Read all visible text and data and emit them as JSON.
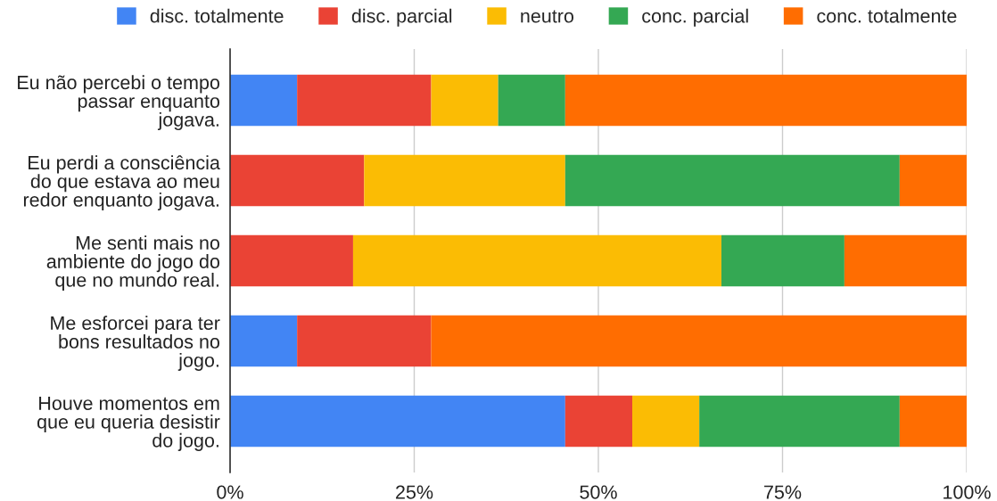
{
  "chart_data": {
    "type": "bar",
    "orientation": "horizontal",
    "stacked": true,
    "categories": [
      "Eu não percebi o tempo\npassar enquanto\njogava.",
      "Eu perdi a consciência\ndo que estava ao meu\nredor enquanto jogava.",
      "Me senti mais no\nambiente do jogo do\nque no mundo real.",
      "Me esforcei para ter\nbons resultados no\njogo.",
      "Houve momentos em\nque eu queria desistir\ndo jogo."
    ],
    "series": [
      {
        "name": "disc. totalmente",
        "color": "#4285f4",
        "values": [
          9.1,
          null,
          null,
          9.1,
          45.5
        ]
      },
      {
        "name": "disc. parcial",
        "color": "#ea4335",
        "values": [
          18.2,
          18.2,
          16.7,
          18.2,
          9.1
        ]
      },
      {
        "name": "neutro",
        "color": "#fbbc04",
        "values": [
          9.1,
          27.3,
          50,
          null,
          9.1
        ]
      },
      {
        "name": "conc. parcial",
        "color": "#34a853",
        "values": [
          9.1,
          45.4,
          16.7,
          null,
          27.2
        ]
      },
      {
        "name": "conc. totalmente",
        "color": "#ff6d01",
        "values": [
          54.5,
          9.1,
          16.6,
          72.7,
          9.1
        ]
      }
    ],
    "xlim": [
      0,
      100
    ],
    "xticks": [
      {
        "value": 0,
        "label": "0%"
      },
      {
        "value": 25,
        "label": "25%"
      },
      {
        "value": 50,
        "label": "50%"
      },
      {
        "value": 75,
        "label": "75%"
      },
      {
        "value": 100,
        "label": "100%"
      }
    ],
    "grid": "x",
    "legend": "top"
  }
}
